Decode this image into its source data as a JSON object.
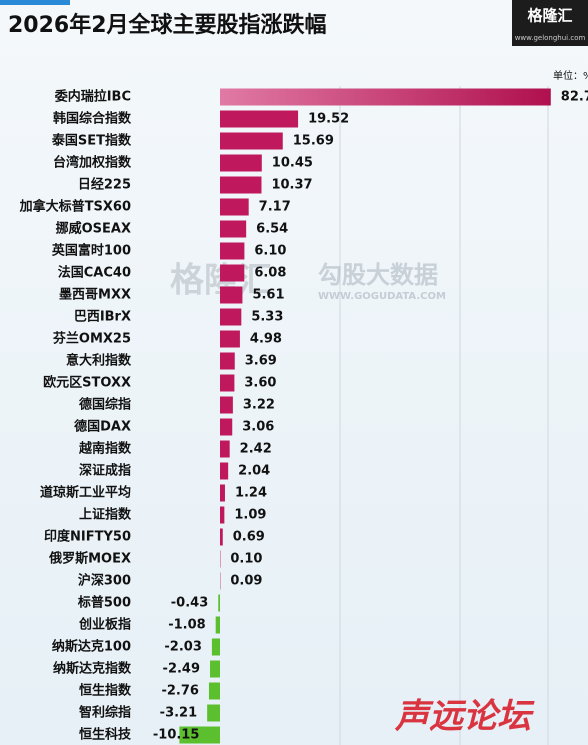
{
  "chart_data": {
    "type": "barh",
    "title": "2026年2月全球主要股指涨跌幅",
    "unit_label": "单位：%",
    "logo": {
      "name": "格隆汇",
      "url": "www.gelonghui.com"
    },
    "watermarks": [
      "格隆汇",
      "勾股大数据",
      "WWW.GOGUDATA.COM",
      "声远论坛"
    ],
    "categories": [
      "委内瑞拉IBC",
      "韩国综合指数",
      "泰国SET指数",
      "台湾加权指数",
      "日经225",
      "加拿大标普TSX60",
      "挪威OSEAX",
      "英国富时100",
      "法国CAC40",
      "墨西哥MXX",
      "巴西IBrX",
      "芬兰OMX25",
      "意大利指数",
      "欧元区STOXX",
      "德国综指",
      "德国DAX",
      "越南指数",
      "深证成指",
      "道琼斯工业平均",
      "上证指数",
      "印度NIFTY50",
      "俄罗斯MOEX",
      "沪深300",
      "标普500",
      "创业板指",
      "纳斯达克100",
      "纳斯达克指数",
      "恒生指数",
      "智利综指",
      "恒生科技"
    ],
    "values": [
      82.7,
      19.52,
      15.69,
      10.45,
      10.37,
      7.17,
      6.54,
      6.1,
      6.08,
      5.61,
      5.33,
      4.98,
      3.69,
      3.6,
      3.22,
      3.06,
      2.42,
      2.04,
      1.24,
      1.09,
      0.69,
      0.1,
      0.09,
      -0.43,
      -1.08,
      -2.03,
      -2.49,
      -2.76,
      -3.21,
      -10.15
    ],
    "value_labels": [
      "82.7",
      "19.52",
      "15.69",
      "10.45",
      "10.37",
      "7.17",
      "6.54",
      "6.10",
      "6.08",
      "5.61",
      "5.33",
      "4.98",
      "3.69",
      "3.60",
      "3.22",
      "3.06",
      "2.42",
      "2.04",
      "1.24",
      "1.09",
      "0.69",
      "0.10",
      "0.09",
      "-0.43",
      "-1.08",
      "-2.03",
      "-2.49",
      "-2.76",
      "-3.21",
      "-10.15"
    ],
    "positive_color": "#c0185c",
    "negative_color": "#5cbf2e",
    "xlim": [
      -30,
      90
    ]
  }
}
